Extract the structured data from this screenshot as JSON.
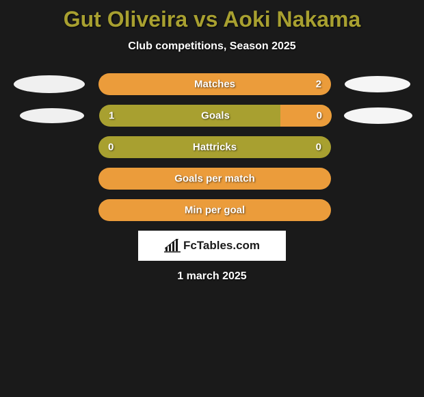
{
  "title": "Gut Oliveira vs Aoki Nakama",
  "subtitle": "Club competitions, Season 2025",
  "date": "1 march 2025",
  "logo_text": "FcTables.com",
  "colors": {
    "background": "#1a1a1a",
    "title": "#a8a030",
    "text": "#ffffff",
    "bar_base": "#a8a030",
    "bar_fill_right": "#eb9c3b",
    "oval": "#f0f0f0",
    "logo_bg": "#ffffff",
    "logo_text": "#1a1a1a"
  },
  "stats": [
    {
      "label": "Matches",
      "left_value": "",
      "right_value": "2",
      "right_fill_pct": 100,
      "show_left_oval": true,
      "show_right_oval": true,
      "left_oval_class": "oval-left-1",
      "right_oval_class": "oval-right-1"
    },
    {
      "label": "Goals",
      "left_value": "1",
      "right_value": "0",
      "right_fill_pct": 22,
      "show_left_oval": true,
      "show_right_oval": true,
      "left_oval_class": "oval-left-2",
      "right_oval_class": "oval-right-2"
    },
    {
      "label": "Hattricks",
      "left_value": "0",
      "right_value": "0",
      "right_fill_pct": 0,
      "show_left_oval": false,
      "show_right_oval": false
    },
    {
      "label": "Goals per match",
      "left_value": "",
      "right_value": "",
      "right_fill_pct": 100,
      "show_left_oval": false,
      "show_right_oval": false
    },
    {
      "label": "Min per goal",
      "left_value": "",
      "right_value": "",
      "right_fill_pct": 100,
      "show_left_oval": false,
      "show_right_oval": false
    }
  ]
}
